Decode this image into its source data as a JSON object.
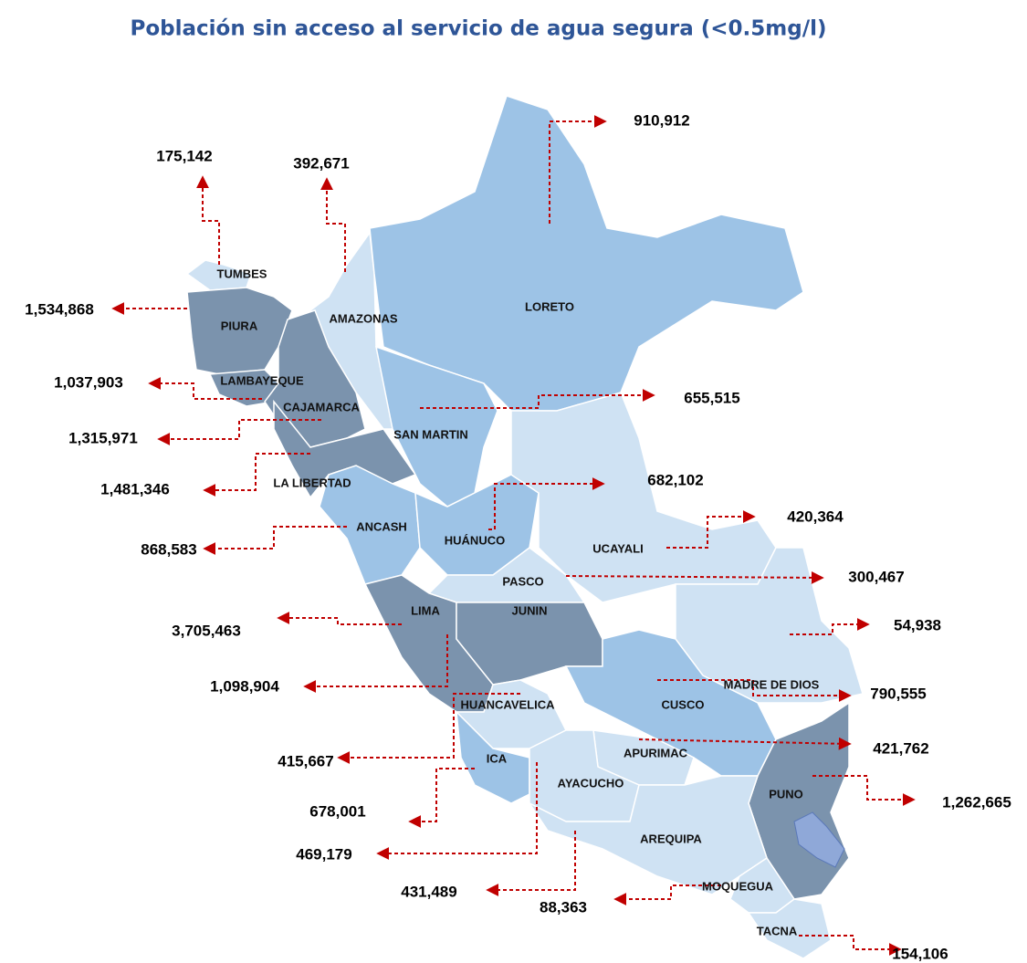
{
  "title": "Población sin acceso al servicio de agua segura (<0.5mg/l)",
  "regions": [
    {
      "name": "TUMBES",
      "value": "175,142"
    },
    {
      "name": "AMAZONAS",
      "value": "392,671"
    },
    {
      "name": "LORETO",
      "value": "910,912"
    },
    {
      "name": "PIURA",
      "value": "1,534,868"
    },
    {
      "name": "LAMBAYEQUE",
      "value": "1,037,903"
    },
    {
      "name": "CAJAMARCA",
      "value": "1,315,971"
    },
    {
      "name": "LA LIBERTAD",
      "value": "1,481,346"
    },
    {
      "name": "SAN MARTIN",
      "value": "655,515"
    },
    {
      "name": "ANCASH",
      "value": "868,583"
    },
    {
      "name": "HUÁNUCO",
      "value": "682,102"
    },
    {
      "name": "UCAYALI",
      "value": "420,364"
    },
    {
      "name": "PASCO",
      "value": "300,467"
    },
    {
      "name": "LIMA",
      "value": "3,705,463"
    },
    {
      "name": "JUNIN",
      "value": "1,098,904"
    },
    {
      "name": "MADRE DE DIOS",
      "value": "54,938"
    },
    {
      "name": "HUANCAVELICA",
      "value": "415,667"
    },
    {
      "name": "CUSCO",
      "value": "790,555"
    },
    {
      "name": "ICA",
      "value": "678,001"
    },
    {
      "name": "APURIMAC",
      "value": "421,762"
    },
    {
      "name": "AYACUCHO",
      "value": "469,179"
    },
    {
      "name": "PUNO",
      "value": "1,262,665"
    },
    {
      "name": "AREQUIPA",
      "value": "431,489"
    },
    {
      "name": "MOQUEGUA",
      "value": "88,363"
    },
    {
      "name": "TACNA",
      "value": "154,106"
    }
  ]
}
